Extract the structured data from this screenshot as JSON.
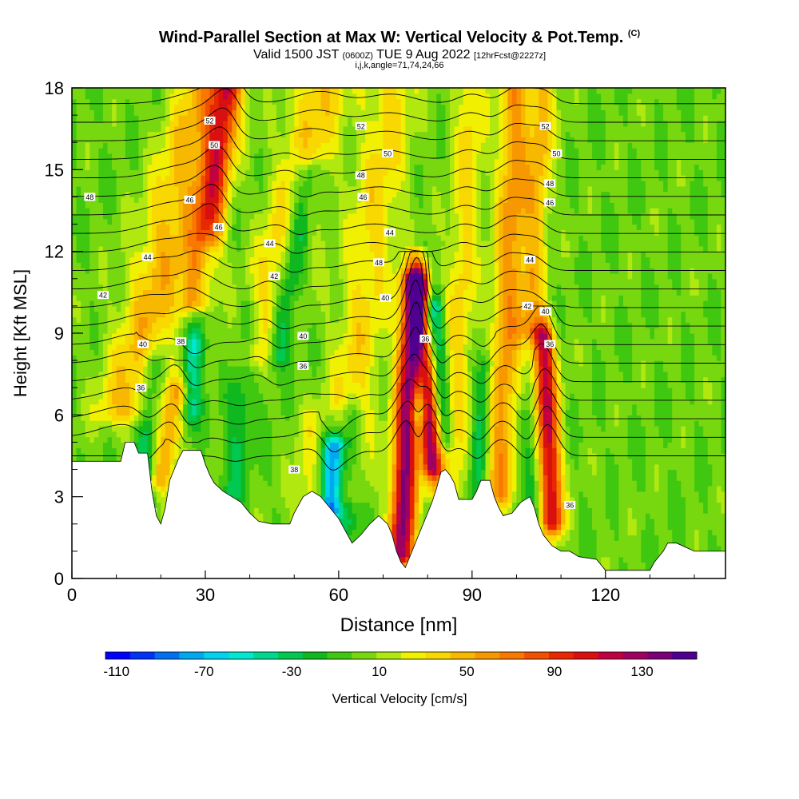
{
  "chart_data": {
    "type": "heatmap",
    "title": "Wind-Parallel Section at Max W: Vertical Velocity & Pot.Temp.",
    "title_mark": "(C)",
    "subtitle_main": "Valid 1500 JST",
    "subtitle_utc": "(0600Z)",
    "subtitle_date": "TUE 9 Aug 2022",
    "subtitle_fcst": "[12hrFcst@2227z]",
    "subtitle2": "i,j,k,angle=71,74,24,66",
    "xlabel": "Distance [nm]",
    "ylabel": "Height [Kft MSL]",
    "xlim": [
      0,
      147
    ],
    "ylim": [
      0,
      18
    ],
    "x_ticks": [
      0,
      30,
      60,
      90,
      120
    ],
    "y_ticks": [
      0,
      3,
      6,
      9,
      12,
      15,
      18
    ],
    "colorbar_label": "Vertical Velocity [cm/s]",
    "colorbar_ticks": [
      "-110",
      "-70",
      "-30",
      "10",
      "50",
      "90",
      "130"
    ],
    "colorbar_range": [
      -115,
      155
    ],
    "colorbar_colors": [
      "#0000ff",
      "#0033f5",
      "#0070f0",
      "#00a8f0",
      "#00d2f0",
      "#00e8d0",
      "#00d890",
      "#00c850",
      "#10b820",
      "#40c810",
      "#78d810",
      "#b0e810",
      "#f0f000",
      "#f8d800",
      "#f8b800",
      "#f89800",
      "#f87800",
      "#f05000",
      "#e82800",
      "#d81010",
      "#c00040",
      "#a00060",
      "#7a0078",
      "#500090"
    ],
    "terrain_kft": [
      [
        0,
        4.3
      ],
      [
        11,
        4.3
      ],
      [
        12,
        5.0
      ],
      [
        14,
        5.0
      ],
      [
        15,
        4.6
      ],
      [
        17,
        4.6
      ],
      [
        18,
        3.2
      ],
      [
        19,
        2.3
      ],
      [
        20,
        2.0
      ],
      [
        21,
        2.6
      ],
      [
        22,
        3.6
      ],
      [
        24,
        4.4
      ],
      [
        25,
        4.7
      ],
      [
        29,
        4.7
      ],
      [
        30,
        4.2
      ],
      [
        31,
        3.8
      ],
      [
        32,
        3.5
      ],
      [
        34,
        3.2
      ],
      [
        36,
        3.0
      ],
      [
        38,
        2.8
      ],
      [
        40,
        2.4
      ],
      [
        42,
        2.1
      ],
      [
        45,
        2.0
      ],
      [
        49,
        2.0
      ],
      [
        50,
        2.4
      ],
      [
        52,
        3.0
      ],
      [
        54,
        3.2
      ],
      [
        56,
        3.0
      ],
      [
        58,
        2.6
      ],
      [
        60,
        2.2
      ],
      [
        62,
        1.6
      ],
      [
        63,
        1.3
      ],
      [
        65,
        1.6
      ],
      [
        67,
        2.0
      ],
      [
        69,
        2.3
      ],
      [
        71,
        2.0
      ],
      [
        72,
        1.6
      ],
      [
        73,
        1.0
      ],
      [
        74,
        0.6
      ],
      [
        75,
        0.4
      ],
      [
        76,
        0.8
      ],
      [
        77,
        1.2
      ],
      [
        78,
        1.6
      ],
      [
        79,
        2.0
      ],
      [
        80,
        2.4
      ],
      [
        81,
        2.8
      ],
      [
        82,
        3.3
      ],
      [
        83,
        3.9
      ],
      [
        84,
        4.0
      ],
      [
        85,
        3.8
      ],
      [
        86,
        3.5
      ],
      [
        87,
        2.9
      ],
      [
        90,
        2.9
      ],
      [
        91,
        3.2
      ],
      [
        92,
        3.6
      ],
      [
        94,
        3.6
      ],
      [
        95,
        3.0
      ],
      [
        96,
        2.6
      ],
      [
        97,
        2.3
      ],
      [
        99,
        2.4
      ],
      [
        101,
        2.8
      ],
      [
        103,
        3.0
      ],
      [
        104,
        2.6
      ],
      [
        105,
        2.0
      ],
      [
        106,
        1.6
      ],
      [
        108,
        1.2
      ],
      [
        110,
        1.0
      ],
      [
        112,
        1.0
      ],
      [
        114,
        0.8
      ],
      [
        118,
        0.7
      ],
      [
        119,
        0.5
      ],
      [
        120,
        0.3
      ],
      [
        130,
        0.3
      ],
      [
        131,
        0.6
      ],
      [
        133,
        1.0
      ],
      [
        134,
        1.3
      ],
      [
        136,
        1.3
      ],
      [
        140,
        1.0
      ],
      [
        147,
        1.0
      ]
    ],
    "updrafts": [
      {
        "x0": 12,
        "h0": 6,
        "x1": 30,
        "h1": 18,
        "w": 7,
        "amp": 48
      },
      {
        "x0": 20,
        "h0": 3.5,
        "x1": 24,
        "h1": 7,
        "w": 3,
        "amp": 55
      },
      {
        "x0": 28,
        "h0": 10,
        "x1": 35,
        "h1": 18,
        "w": 3.5,
        "amp": 88
      },
      {
        "x0": 42,
        "h0": 8,
        "x1": 56,
        "h1": 18,
        "w": 6,
        "amp": 45
      },
      {
        "x0": 52,
        "h0": 2,
        "x1": 53,
        "h1": 6,
        "w": 3,
        "amp": 18
      },
      {
        "x0": 60,
        "h0": 3,
        "x1": 72,
        "h1": 18,
        "w": 6,
        "amp": 35
      },
      {
        "x0": 74,
        "h0": 0.8,
        "x1": 77,
        "h1": 11,
        "w": 2.8,
        "amp": 135
      },
      {
        "x0": 81,
        "h0": 4,
        "x1": 78,
        "h1": 11,
        "w": 2.2,
        "amp": 120
      },
      {
        "x0": 85,
        "h0": 3,
        "x1": 90,
        "h1": 18,
        "w": 3.5,
        "amp": 35
      },
      {
        "x0": 96,
        "h0": 3,
        "x1": 100,
        "h1": 18,
        "w": 3.5,
        "amp": 60
      },
      {
        "x0": 108,
        "h0": 2,
        "x1": 106,
        "h1": 9,
        "w": 2.5,
        "amp": 115
      },
      {
        "x0": 103,
        "h0": 9,
        "x1": 106,
        "h1": 18,
        "w": 3,
        "amp": 45
      }
    ],
    "downdrafts": [
      {
        "x0": 16,
        "h0": 3,
        "x1": 18,
        "h1": 8,
        "w": 2.5,
        "amp": -40
      },
      {
        "x0": 26,
        "h0": 6,
        "x1": 30,
        "h1": 12,
        "w": 2.5,
        "amp": -50
      },
      {
        "x0": 36,
        "h0": 3,
        "x1": 40,
        "h1": 10,
        "w": 3,
        "amp": -25
      },
      {
        "x0": 46,
        "h0": 8,
        "x1": 53,
        "h1": 15,
        "w": 3,
        "amp": -55
      },
      {
        "x0": 58,
        "h0": 2.5,
        "x1": 59,
        "h1": 5,
        "w": 2.5,
        "amp": -100
      },
      {
        "x0": 62,
        "h0": 2,
        "x1": 63,
        "h1": 6,
        "w": 2.5,
        "amp": -35
      },
      {
        "x0": 78,
        "h0": 6,
        "x1": 80,
        "h1": 10,
        "w": 1.8,
        "amp": -65
      },
      {
        "x0": 84,
        "h0": 5,
        "x1": 82,
        "h1": 10,
        "w": 1.8,
        "amp": -40
      },
      {
        "x0": 91,
        "h0": 3,
        "x1": 93,
        "h1": 8,
        "w": 2,
        "amp": -35
      },
      {
        "x0": 104,
        "h0": 2,
        "x1": 102,
        "h1": 6,
        "w": 2,
        "amp": -30
      }
    ],
    "contour_labels": [
      {
        "text": "48",
        "x": 4,
        "y": 14.0
      },
      {
        "text": "42",
        "x": 7,
        "y": 10.4
      },
      {
        "text": "44",
        "x": 17,
        "y": 11.8
      },
      {
        "text": "40",
        "x": 16,
        "y": 8.6
      },
      {
        "text": "36",
        "x": 15.5,
        "y": 7.0
      },
      {
        "text": "38",
        "x": 24.5,
        "y": 8.7
      },
      {
        "text": "46",
        "x": 26.5,
        "y": 13.9
      },
      {
        "text": "52",
        "x": 31,
        "y": 16.8
      },
      {
        "text": "50",
        "x": 32,
        "y": 15.9
      },
      {
        "text": "46",
        "x": 33,
        "y": 12.9
      },
      {
        "text": "44",
        "x": 44.5,
        "y": 12.3
      },
      {
        "text": "42",
        "x": 45.5,
        "y": 11.1
      },
      {
        "text": "40",
        "x": 52,
        "y": 8.9
      },
      {
        "text": "36",
        "x": 52,
        "y": 7.8
      },
      {
        "text": "38",
        "x": 50,
        "y": 4.0
      },
      {
        "text": "52",
        "x": 65,
        "y": 16.6
      },
      {
        "text": "48",
        "x": 65,
        "y": 14.8
      },
      {
        "text": "46",
        "x": 65.5,
        "y": 14.0
      },
      {
        "text": "50",
        "x": 71,
        "y": 15.6
      },
      {
        "text": "44",
        "x": 71.5,
        "y": 12.7
      },
      {
        "text": "48",
        "x": 69,
        "y": 11.6
      },
      {
        "text": "40",
        "x": 70.5,
        "y": 10.3
      },
      {
        "text": "36",
        "x": 79.5,
        "y": 8.8
      },
      {
        "text": "52",
        "x": 106.5,
        "y": 16.6
      },
      {
        "text": "50",
        "x": 109,
        "y": 15.6
      },
      {
        "text": "48",
        "x": 107.5,
        "y": 14.5
      },
      {
        "text": "46",
        "x": 107.5,
        "y": 13.8
      },
      {
        "text": "44",
        "x": 103,
        "y": 11.7
      },
      {
        "text": "42",
        "x": 102.5,
        "y": 10.0
      },
      {
        "text": "40",
        "x": 106.5,
        "y": 9.8
      },
      {
        "text": "36",
        "x": 107.5,
        "y": 8.6
      },
      {
        "text": "36",
        "x": 112,
        "y": 2.7
      }
    ]
  }
}
